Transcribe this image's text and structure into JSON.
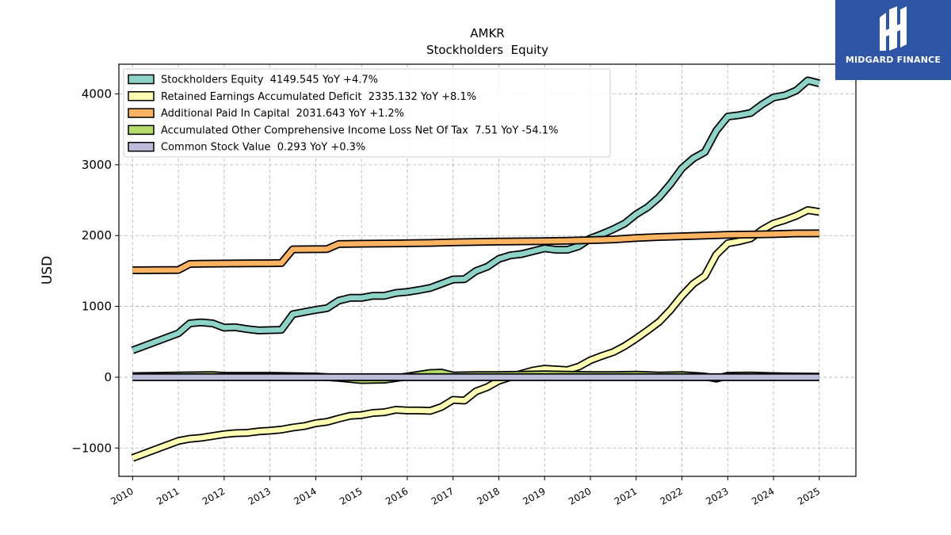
{
  "brand": {
    "name": "MIDGARD FINANCE",
    "bg_color": "#2f56a6"
  },
  "chart_data": {
    "type": "line",
    "title": "AMKR",
    "subtitle": "Stockholders  Equity",
    "ylabel": "USD",
    "xlabel": "",
    "xlim": [
      2009.7,
      2025.8
    ],
    "ylim": [
      -1400,
      4420
    ],
    "yticks": [
      -1000,
      0,
      1000,
      2000,
      3000,
      4000
    ],
    "ytick_labels": [
      "−1000",
      "0",
      "1000",
      "2000",
      "3000",
      "4000"
    ],
    "xticks": [
      2010,
      2011,
      2012,
      2013,
      2014,
      2015,
      2016,
      2017,
      2018,
      2019,
      2020,
      2021,
      2022,
      2023,
      2024,
      2025
    ],
    "xtick_labels": [
      "2010",
      "2011",
      "2012",
      "2013",
      "2014",
      "2015",
      "2016",
      "2017",
      "2018",
      "2019",
      "2020",
      "2021",
      "2022",
      "2023",
      "2024",
      "2025"
    ],
    "grid": true,
    "legend_position": "top-left",
    "series": [
      {
        "name": "Stockholders Equity",
        "legend_label": "Stockholders Equity  4149.545 YoY +4.7%",
        "color": "#8dd3c7",
        "points": [
          [
            2010,
            380
          ],
          [
            2011,
            620
          ],
          [
            2011.25,
            760
          ],
          [
            2011.5,
            775
          ],
          [
            2011.75,
            760
          ],
          [
            2012,
            700
          ],
          [
            2012.25,
            705
          ],
          [
            2012.5,
            680
          ],
          [
            2012.75,
            660
          ],
          [
            2013,
            665
          ],
          [
            2013.25,
            670
          ],
          [
            2013.5,
            890
          ],
          [
            2013.75,
            920
          ],
          [
            2014,
            950
          ],
          [
            2014.25,
            975
          ],
          [
            2014.5,
            1080
          ],
          [
            2014.75,
            1120
          ],
          [
            2015,
            1120
          ],
          [
            2015.25,
            1150
          ],
          [
            2015.5,
            1150
          ],
          [
            2015.75,
            1190
          ],
          [
            2016,
            1205
          ],
          [
            2016.25,
            1230
          ],
          [
            2016.5,
            1260
          ],
          [
            2016.75,
            1320
          ],
          [
            2017,
            1380
          ],
          [
            2017.25,
            1385
          ],
          [
            2017.5,
            1500
          ],
          [
            2017.75,
            1560
          ],
          [
            2018,
            1670
          ],
          [
            2018.25,
            1720
          ],
          [
            2018.5,
            1740
          ],
          [
            2018.75,
            1780
          ],
          [
            2019,
            1820
          ],
          [
            2019.25,
            1800
          ],
          [
            2019.5,
            1800
          ],
          [
            2019.75,
            1850
          ],
          [
            2020,
            1960
          ],
          [
            2020.25,
            2020
          ],
          [
            2020.5,
            2090
          ],
          [
            2020.75,
            2170
          ],
          [
            2021,
            2300
          ],
          [
            2021.25,
            2400
          ],
          [
            2021.5,
            2540
          ],
          [
            2021.75,
            2730
          ],
          [
            2022,
            2950
          ],
          [
            2022.25,
            3090
          ],
          [
            2022.5,
            3180
          ],
          [
            2022.75,
            3480
          ],
          [
            2023,
            3680
          ],
          [
            2023.25,
            3700
          ],
          [
            2023.5,
            3730
          ],
          [
            2023.75,
            3850
          ],
          [
            2024,
            3950
          ],
          [
            2024.25,
            3980
          ],
          [
            2024.5,
            4050
          ],
          [
            2024.75,
            4190
          ],
          [
            2025,
            4150
          ]
        ]
      },
      {
        "name": "Retained Earnings Accumulated Deficit",
        "legend_label": "Retained Earnings Accumulated Deficit  2335.132 YoY +8.1%",
        "color": "#ffffb3",
        "points": [
          [
            2010,
            -1140
          ],
          [
            2011,
            -900
          ],
          [
            2011.25,
            -870
          ],
          [
            2011.5,
            -855
          ],
          [
            2011.75,
            -830
          ],
          [
            2012,
            -805
          ],
          [
            2012.25,
            -790
          ],
          [
            2012.5,
            -785
          ],
          [
            2012.75,
            -765
          ],
          [
            2013,
            -755
          ],
          [
            2013.25,
            -740
          ],
          [
            2013.5,
            -710
          ],
          [
            2013.75,
            -690
          ],
          [
            2014,
            -650
          ],
          [
            2014.25,
            -630
          ],
          [
            2014.5,
            -585
          ],
          [
            2014.75,
            -545
          ],
          [
            2015,
            -535
          ],
          [
            2015.25,
            -505
          ],
          [
            2015.5,
            -495
          ],
          [
            2015.75,
            -460
          ],
          [
            2016,
            -470
          ],
          [
            2016.25,
            -470
          ],
          [
            2016.5,
            -475
          ],
          [
            2016.75,
            -420
          ],
          [
            2017,
            -320
          ],
          [
            2017.25,
            -330
          ],
          [
            2017.5,
            -200
          ],
          [
            2017.75,
            -140
          ],
          [
            2018,
            -50
          ],
          [
            2018.25,
            0
          ],
          [
            2018.5,
            50
          ],
          [
            2018.75,
            95
          ],
          [
            2019,
            120
          ],
          [
            2019.25,
            110
          ],
          [
            2019.5,
            100
          ],
          [
            2019.75,
            150
          ],
          [
            2020,
            240
          ],
          [
            2020.25,
            300
          ],
          [
            2020.5,
            355
          ],
          [
            2020.75,
            440
          ],
          [
            2021,
            545
          ],
          [
            2021.25,
            660
          ],
          [
            2021.5,
            780
          ],
          [
            2021.75,
            950
          ],
          [
            2022,
            1150
          ],
          [
            2022.25,
            1320
          ],
          [
            2022.5,
            1430
          ],
          [
            2022.75,
            1730
          ],
          [
            2023,
            1890
          ],
          [
            2023.25,
            1920
          ],
          [
            2023.5,
            1960
          ],
          [
            2023.75,
            2080
          ],
          [
            2024,
            2170
          ],
          [
            2024.25,
            2220
          ],
          [
            2024.5,
            2280
          ],
          [
            2024.75,
            2360
          ],
          [
            2025,
            2335
          ]
        ]
      },
      {
        "name": "Additional Paid In Capital",
        "legend_label": "Additional Paid In Capital  2031.643 YoY +1.2%",
        "color": "#fdb462",
        "points": [
          [
            2010,
            1510
          ],
          [
            2011,
            1515
          ],
          [
            2011.25,
            1600
          ],
          [
            2011.5,
            1603
          ],
          [
            2012,
            1605
          ],
          [
            2012.5,
            1607
          ],
          [
            2013,
            1610
          ],
          [
            2013.25,
            1612
          ],
          [
            2013.5,
            1805
          ],
          [
            2014,
            1808
          ],
          [
            2014.25,
            1810
          ],
          [
            2014.5,
            1880
          ],
          [
            2015,
            1885
          ],
          [
            2015.5,
            1888
          ],
          [
            2016,
            1892
          ],
          [
            2016.5,
            1896
          ],
          [
            2017,
            1905
          ],
          [
            2017.5,
            1910
          ],
          [
            2018,
            1915
          ],
          [
            2018.5,
            1918
          ],
          [
            2019,
            1922
          ],
          [
            2019.5,
            1926
          ],
          [
            2020,
            1935
          ],
          [
            2020.5,
            1945
          ],
          [
            2021,
            1965
          ],
          [
            2021.5,
            1980
          ],
          [
            2022,
            1990
          ],
          [
            2022.5,
            2000
          ],
          [
            2023,
            2010
          ],
          [
            2023.5,
            2015
          ],
          [
            2024,
            2020
          ],
          [
            2024.5,
            2030
          ],
          [
            2025,
            2032
          ]
        ]
      },
      {
        "name": "Accumulated Other Comprehensive Income Loss Net Of Tax",
        "legend_label": "Accumulated Other Comprehensive Income Loss Net Of Tax  7.51 YoY -54.1%",
        "color": "#b3de69",
        "points": [
          [
            2010,
            15
          ],
          [
            2011,
            25
          ],
          [
            2011.75,
            30
          ],
          [
            2012,
            20
          ],
          [
            2013,
            20
          ],
          [
            2014,
            10
          ],
          [
            2014.5,
            -10
          ],
          [
            2015,
            -40
          ],
          [
            2015.5,
            -35
          ],
          [
            2016,
            10
          ],
          [
            2016.5,
            60
          ],
          [
            2016.75,
            65
          ],
          [
            2017,
            25
          ],
          [
            2017.5,
            30
          ],
          [
            2018,
            30
          ],
          [
            2018.5,
            35
          ],
          [
            2019,
            40
          ],
          [
            2019.5,
            35
          ],
          [
            2020,
            30
          ],
          [
            2020.5,
            30
          ],
          [
            2021,
            35
          ],
          [
            2021.5,
            25
          ],
          [
            2022,
            30
          ],
          [
            2022.5,
            10
          ],
          [
            2022.75,
            -20
          ],
          [
            2023,
            20
          ],
          [
            2023.5,
            25
          ],
          [
            2024,
            15
          ],
          [
            2024.5,
            10
          ],
          [
            2025,
            7.51
          ]
        ]
      },
      {
        "name": "Common Stock Value",
        "legend_label": "Common Stock Value  0.293 YoY +0.3%",
        "color": "#bebada",
        "points": [
          [
            2010,
            0.2
          ],
          [
            2015,
            0.25
          ],
          [
            2020,
            0.28
          ],
          [
            2025,
            0.293
          ]
        ]
      }
    ]
  }
}
